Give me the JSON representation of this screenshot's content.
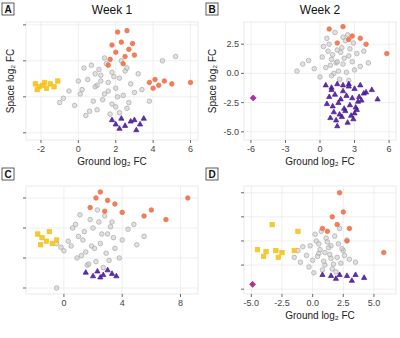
{
  "chart_data": [
    {
      "type": "scatter",
      "title": "A",
      "subtitle": "Week 1",
      "x_label": "Ground log₂ FC",
      "y_label": "Space log₂ FC",
      "xlim": [
        -2.8,
        6.4
      ],
      "ylim": [
        -3,
        5.2
      ],
      "xticks": [
        -2,
        0,
        2,
        4,
        6
      ],
      "yticks": [
        -2.5,
        0,
        2.5,
        5
      ],
      "grid": true,
      "tick_labels": "x",
      "series": [
        {
          "color": "#c9c9c9",
          "marker": "circle",
          "x": [
            0.2,
            0.5,
            0.8,
            1.0,
            1.2,
            1.4,
            1.6,
            1.8,
            2.0,
            2.2,
            2.4,
            2.6,
            2.8,
            3.0,
            3.2,
            -0.5,
            -0.2,
            0.0,
            0.3,
            0.6,
            0.9,
            1.1,
            1.3,
            1.5,
            1.7,
            1.9,
            2.1,
            2.3,
            2.5,
            2.7,
            0.4,
            0.7,
            1.0,
            1.4,
            1.8,
            2.2,
            2.6,
            3.4,
            3.8,
            -0.8,
            0.1,
            1.6,
            2.0,
            1.2,
            0.9,
            4.5,
            5.2,
            -1.0
          ],
          "values": [
            0.5,
            1.2,
            -0.3,
            0.8,
            1.5,
            0.2,
            1.0,
            -0.5,
            0.6,
            1.3,
            0.1,
            -0.8,
            0.9,
            0.3,
            1.6,
            0.4,
            -0.6,
            1.1,
            2.0,
            -1.0,
            0.7,
            1.9,
            -0.2,
            2.3,
            -1.2,
            1.4,
            0.0,
            2.5,
            1.8,
            -0.4,
            -1.3,
            2.2,
            -0.9,
            2.7,
            1.7,
            -1.1,
            2.0,
            0.5,
            -0.3,
            -0.1,
            0.2,
            0.4,
            -0.7,
            1.1,
            1.6,
            2.5,
            2.8,
            -0.4
          ]
        },
        {
          "color": "#f5c21b",
          "marker": "square",
          "x": [
            -2.3,
            -2.1,
            -1.9,
            -1.7,
            -1.5,
            -1.3,
            -2.2,
            -1.1,
            -1.8
          ],
          "values": [
            0.9,
            0.7,
            0.8,
            0.6,
            0.9,
            0.7,
            0.5,
            1.1,
            1.0
          ]
        },
        {
          "color": "#ee7048",
          "marker": "circle",
          "x": [
            2.1,
            2.6,
            1.8,
            2.3,
            2.7,
            2.0,
            2.5,
            1.7,
            3.0,
            2.9,
            1.6,
            2.4,
            3.8,
            4.1,
            4.3,
            4.6,
            5.0,
            6.0,
            4.0
          ],
          "values": [
            4.5,
            4.6,
            3.6,
            3.8,
            3.3,
            3.1,
            2.8,
            2.6,
            2.9,
            3.7,
            2.2,
            2.3,
            1.0,
            1.2,
            0.8,
            1.1,
            0.9,
            1.0,
            0.6
          ]
        },
        {
          "color": "#4a1a9c",
          "marker": "triangle",
          "x": [
            1.8,
            2.0,
            2.3,
            2.5,
            2.8,
            3.0,
            3.3,
            3.5,
            2.2,
            3.1
          ],
          "values": [
            -1.6,
            -1.9,
            -1.5,
            -2.0,
            -1.7,
            -1.6,
            -1.9,
            -1.5,
            -2.2,
            -2.3
          ]
        }
      ]
    },
    {
      "type": "scatter",
      "title": "B",
      "subtitle": "Week 2",
      "x_label": "Ground log₂ FC",
      "y_label": "Space log₂ FC",
      "xlim": [
        -6.6,
        6.6
      ],
      "ylim": [
        -5.7,
        4.4
      ],
      "xticks": [
        -6,
        -3,
        0,
        3,
        6
      ],
      "yticks": [
        {
          "value": -5,
          "label": "-5.0"
        },
        {
          "value": -2.5,
          "label": "-2.5"
        },
        {
          "value": 0,
          "label": "0.0"
        },
        {
          "value": 2.5,
          "label": "2.5"
        }
      ],
      "grid": true,
      "tick_labels": true,
      "series": [
        {
          "color": "#c9c9c9",
          "marker": "circle",
          "x": [
            0.5,
            1.0,
            1.5,
            2.0,
            2.5,
            3.0,
            0.8,
            1.2,
            1.8,
            2.2,
            2.8,
            3.5,
            0.2,
            0.6,
            1.4,
            1.9,
            2.4,
            3.2,
            -0.5,
            -1.0,
            0.0,
            1.1,
            1.6,
            2.1,
            2.6,
            0.9,
            1.3,
            1.7,
            2.3,
            3.8,
            -1.5,
            0.3,
            1.0,
            2.0,
            2.9,
            1.5,
            0.7,
            2.5,
            4.2,
            -2.0
          ],
          "values": [
            0.5,
            1.2,
            2.0,
            0.8,
            1.5,
            0.3,
            2.5,
            0.0,
            1.8,
            2.8,
            1.0,
            0.6,
            1.4,
            3.0,
            0.9,
            2.2,
            3.3,
            1.7,
            0.4,
            1.1,
            -0.3,
            1.6,
            0.2,
            1.3,
            2.1,
            0.7,
            3.5,
            -0.5,
            0.1,
            1.9,
            0.8,
            2.3,
            -0.2,
            3.1,
            2.6,
            1.0,
            1.9,
            -0.6,
            0.9,
            0.2
          ]
        },
        {
          "color": "#ee7048",
          "marker": "circle",
          "x": [
            2.0,
            2.8,
            2.5,
            1.5,
            3.5,
            5.8,
            4.0,
            0.8
          ],
          "values": [
            4.0,
            3.2,
            2.9,
            2.6,
            3.0,
            1.7,
            2.5,
            3.8
          ]
        },
        {
          "color": "#4a1a9c",
          "marker": "triangle",
          "x": [
            0.5,
            1.0,
            1.5,
            2.0,
            2.5,
            3.0,
            3.5,
            4.0,
            0.8,
            1.3,
            1.8,
            2.3,
            2.8,
            3.3,
            3.8,
            0.6,
            1.1,
            1.6,
            2.1,
            2.6,
            3.1,
            3.6,
            1.2,
            1.7,
            2.2,
            2.7,
            3.2,
            0.9,
            1.4,
            1.9,
            2.4,
            2.9,
            3.4,
            4.5,
            1.5,
            2.0,
            2.5,
            1.0,
            3.0,
            5.0
          ],
          "values": [
            -1.0,
            -1.2,
            -0.9,
            -1.5,
            -1.1,
            -1.3,
            -1.0,
            -1.6,
            -2.0,
            -1.8,
            -2.2,
            -1.9,
            -2.1,
            -2.4,
            -1.7,
            -2.6,
            -2.8,
            -2.5,
            -3.0,
            -2.7,
            -2.9,
            -2.3,
            -3.3,
            -3.5,
            -3.2,
            -3.6,
            -3.1,
            -3.8,
            -4.0,
            -3.7,
            -4.2,
            -3.9,
            -2.0,
            -1.4,
            -4.5,
            -1.0,
            -0.9,
            -1.4,
            -3.4,
            -2.2
          ]
        },
        {
          "color": "#a0208f",
          "marker": "diamond",
          "x": [
            -5.8
          ],
          "values": [
            -2.1
          ]
        }
      ]
    },
    {
      "type": "scatter",
      "title": "C",
      "xlim": [
        -2.6,
        9.2
      ],
      "ylim": [
        -3,
        6
      ],
      "xticks": [
        0,
        4,
        8
      ],
      "yticks": [
        -2.5,
        0,
        2.5,
        5
      ],
      "grid": true,
      "tick_labels": "x",
      "series": [
        {
          "color": "#c9c9c9",
          "marker": "circle",
          "x": [
            0.5,
            1.0,
            1.5,
            2.0,
            2.5,
            3.0,
            3.5,
            4.0,
            0.8,
            1.2,
            1.8,
            2.2,
            2.8,
            3.2,
            3.8,
            0.3,
            0.0,
            1.4,
            1.9,
            2.4,
            2.9,
            3.4,
            4.4,
            5.0,
            1.6,
            2.6,
            0.6,
            1.1,
            2.1,
            3.1,
            -0.5,
            4.8,
            1.3,
            2.3,
            3.3,
            0.9,
            1.7,
            2.7,
            5.5,
            -0.2,
            -0.5
          ],
          "values": [
            1.0,
            1.8,
            0.5,
            2.5,
            1.2,
            2.0,
            0.8,
            1.5,
            2.8,
            0.2,
            3.2,
            -0.3,
            3.5,
            2.6,
            0.0,
            1.4,
            0.6,
            2.2,
            1.0,
            3.0,
            0.4,
            1.7,
            2.4,
            1.1,
            -0.6,
            2.0,
            2.5,
            3.6,
            0.8,
            -0.2,
            1.2,
            2.8,
            1.5,
            4.0,
            3.0,
            0.0,
            -0.5,
            -0.8,
            1.8,
            0.9,
            -2.5
          ]
        },
        {
          "color": "#f5c21b",
          "marker": "square",
          "x": [
            -1.8,
            -1.5,
            -1.2,
            -0.8,
            -1.0,
            -0.5,
            -1.6
          ],
          "values": [
            2.0,
            1.7,
            1.4,
            1.2,
            2.2,
            1.5,
            1.1
          ]
        },
        {
          "color": "#ee7048",
          "marker": "circle",
          "x": [
            2.5,
            2.2,
            3.0,
            1.8,
            3.5,
            4.0,
            5.5,
            6.0,
            8.5,
            7.0,
            2.8
          ],
          "values": [
            5.5,
            5.0,
            4.8,
            4.2,
            4.5,
            3.8,
            3.5,
            4.0,
            5.0,
            3.2,
            3.9
          ]
        },
        {
          "color": "#4a1a9c",
          "marker": "triangle",
          "x": [
            1.5,
            2.0,
            2.3,
            2.7,
            3.0,
            3.3,
            3.6,
            2.5
          ],
          "values": [
            -1.2,
            -1.5,
            -1.1,
            -1.4,
            -1.0,
            -1.3,
            -1.5,
            -1.6
          ]
        }
      ]
    },
    {
      "type": "scatter",
      "title": "D",
      "x_label": "Ground log₂ FC",
      "xlim": [
        -5.6,
        6.8
      ],
      "ylim": [
        -3,
        8.2
      ],
      "xticks": [
        {
          "value": -5,
          "label": "-5.0"
        },
        {
          "value": -2.5,
          "label": "-2.5"
        },
        {
          "value": 0,
          "label": "0.0"
        },
        {
          "value": 2.5,
          "label": "2.5"
        },
        {
          "value": 5,
          "label": "5.0"
        }
      ],
      "yticks": [
        -2.5,
        0,
        2.5,
        5,
        7.5
      ],
      "grid": true,
      "tick_labels": "x",
      "series": [
        {
          "color": "#c9c9c9",
          "marker": "circle",
          "x": [
            0.0,
            0.5,
            1.0,
            1.5,
            2.0,
            2.5,
            -0.5,
            -1.0,
            0.3,
            0.8,
            1.3,
            1.8,
            2.3,
            -0.3,
            0.6,
            1.1,
            1.6,
            2.1,
            2.6,
            3.0,
            -1.5,
            -0.8,
            0.2,
            0.9,
            1.4,
            1.9,
            2.4,
            0.4,
            1.2,
            1.7,
            -0.2,
            0.7,
            2.8,
            3.5,
            -1.2,
            0.1,
            1.0,
            2.2,
            0.5,
            1.5
          ],
          "values": [
            0.5,
            1.2,
            0.0,
            2.0,
            0.8,
            1.5,
            1.0,
            0.3,
            2.5,
            -0.5,
            1.8,
            3.0,
            0.2,
            -0.2,
            1.6,
            2.8,
            -0.4,
            2.2,
            1.0,
            0.6,
            0.8,
            1.9,
            3.2,
            0.4,
            1.1,
            -0.7,
            1.7,
            0.9,
            2.4,
            0.1,
            2.0,
            3.5,
            2.6,
            0.3,
            1.5,
            -0.8,
            1.3,
            3.8,
            2.2,
            0.7
          ]
        },
        {
          "color": "#f5c21b",
          "marker": "square",
          "x": [
            -3.3,
            -4.5,
            -3.8,
            -3.0,
            -2.5,
            -1.5,
            -2.8,
            -4.0,
            -1.2
          ],
          "values": [
            4.2,
            1.6,
            1.4,
            1.5,
            1.3,
            1.5,
            0.8,
            0.9,
            3.5
          ]
        },
        {
          "color": "#ee7048",
          "marker": "circle",
          "x": [
            2.2,
            1.6,
            2.0,
            2.5,
            1.2,
            0.8,
            3.0,
            5.8,
            2.8
          ],
          "values": [
            7.5,
            5.0,
            4.2,
            5.5,
            3.5,
            3.8,
            3.8,
            1.3,
            2.5
          ]
        },
        {
          "color": "#4a1a9c",
          "marker": "triangle",
          "x": [
            0.8,
            1.5,
            2.2,
            2.8,
            3.5,
            4.2,
            3.2,
            1.9
          ],
          "values": [
            -1.0,
            -1.1,
            -1.0,
            -1.1,
            -1.0,
            -1.3,
            -1.6,
            -1.4
          ]
        },
        {
          "color": "#a0208f",
          "marker": "diamond",
          "x": [
            -4.9
          ],
          "values": [
            -2.0
          ]
        }
      ]
    }
  ]
}
